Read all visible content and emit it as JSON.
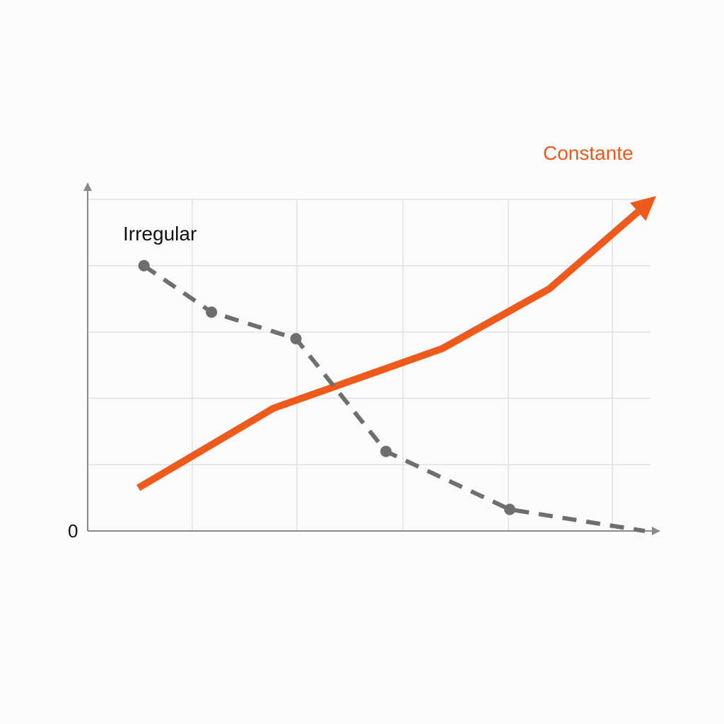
{
  "chart_data": {
    "type": "line",
    "title": "",
    "xlabel": "",
    "ylabel": "",
    "xlim": [
      0,
      10
    ],
    "ylim": [
      0,
      10
    ],
    "grid": true,
    "legend": "inline",
    "y_tick_labels": [
      {
        "value": 0,
        "label": "0"
      }
    ],
    "series": [
      {
        "name": "Constante",
        "style": "solid-arrow",
        "color": "#ee5a1c",
        "x": [
          0.9,
          3.3,
          6.3,
          8.2,
          10.1
        ],
        "y": [
          1.3,
          3.7,
          5.5,
          7.3,
          10.1
        ]
      },
      {
        "name": "Irregular",
        "style": "dashed-markers",
        "color": "#6e6e6e",
        "x": [
          1.0,
          2.2,
          3.7,
          5.3,
          7.5,
          9.9
        ],
        "y": [
          8.0,
          6.6,
          5.8,
          2.4,
          0.65,
          0.0
        ]
      }
    ]
  }
}
